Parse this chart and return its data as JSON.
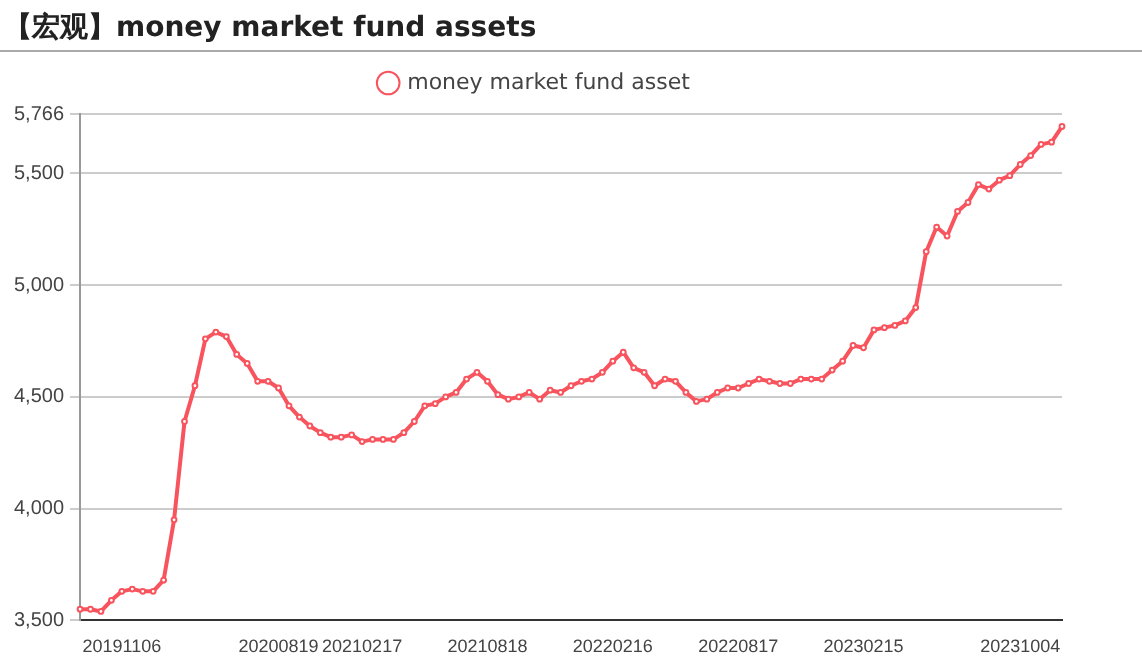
{
  "chart_data": {
    "type": "line",
    "title": "【宏观】money market fund assets",
    "categories": [
      null,
      null,
      null,
      null,
      "20191106",
      null,
      null,
      null,
      null,
      null,
      null,
      null,
      null,
      null,
      null,
      null,
      null,
      null,
      null,
      "20200819",
      null,
      null,
      null,
      null,
      null,
      null,
      null,
      "20210217",
      null,
      null,
      null,
      null,
      null,
      null,
      null,
      null,
      null,
      null,
      null,
      "20210818",
      null,
      null,
      null,
      null,
      null,
      null,
      null,
      null,
      null,
      null,
      null,
      "20220216",
      null,
      null,
      null,
      null,
      null,
      null,
      null,
      null,
      null,
      null,
      null,
      "20220817",
      null,
      null,
      null,
      null,
      null,
      null,
      null,
      null,
      null,
      null,
      null,
      "20230215",
      null,
      null,
      null,
      null,
      null,
      null,
      null,
      null,
      null,
      null,
      null,
      null,
      null,
      null,
      "20231004",
      null,
      null,
      null,
      null
    ],
    "series": [
      {
        "name": "money market fund asset",
        "color": "#f8545e",
        "values": [
          3550,
          3550,
          3540,
          3590,
          3630,
          3640,
          3630,
          3630,
          3680,
          3950,
          4390,
          4550,
          4760,
          4790,
          4770,
          4690,
          4650,
          4570,
          4570,
          4540,
          4460,
          4410,
          4370,
          4340,
          4320,
          4320,
          4330,
          4300,
          4310,
          4310,
          4310,
          4340,
          4390,
          4460,
          4470,
          4500,
          4520,
          4580,
          4610,
          4570,
          4510,
          4490,
          4500,
          4520,
          4490,
          4530,
          4520,
          4550,
          4570,
          4580,
          4610,
          4660,
          4700,
          4630,
          4610,
          4550,
          4580,
          4570,
          4520,
          4480,
          4490,
          4520,
          4540,
          4540,
          4560,
          4580,
          4570,
          4560,
          4560,
          4580,
          4580,
          4580,
          4620,
          4660,
          4730,
          4720,
          4800,
          4810,
          4820,
          4840,
          4900,
          5150,
          5260,
          5220,
          5330,
          5370,
          5450,
          5430,
          5470,
          5490,
          5540,
          5580,
          5630,
          5640,
          5710
        ]
      }
    ],
    "ylim": [
      3500,
      5766
    ],
    "yticks": [
      {
        "value": 3500,
        "label": "3,500"
      },
      {
        "value": 4000,
        "label": "4,000"
      },
      {
        "value": 4500,
        "label": "4,500"
      },
      {
        "value": 5000,
        "label": "5,000"
      },
      {
        "value": 5500,
        "label": "5,500"
      },
      {
        "value": 5766,
        "label": "5,766"
      }
    ],
    "grid": "y",
    "legend": "top",
    "marker": "circle",
    "line_style": "solid"
  }
}
